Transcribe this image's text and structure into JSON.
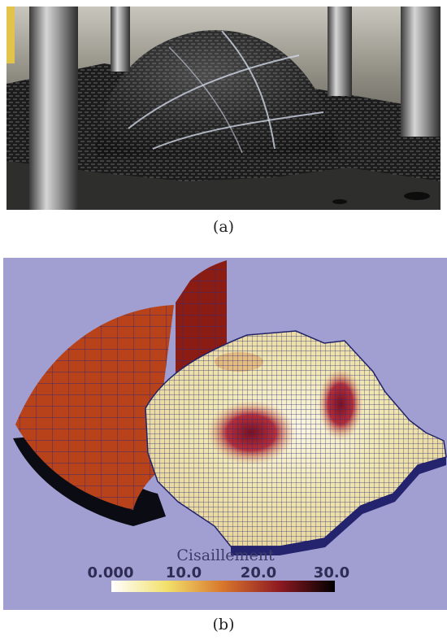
{
  "figure": {
    "panel_a": {
      "caption": "(a)"
    },
    "panel_b": {
      "caption": "(b)",
      "colorbar": {
        "title": "Cisaillement",
        "ticks": [
          "0.000",
          "10.0",
          "20.0",
          "30.0"
        ],
        "min": 0,
        "max": 30,
        "colors": [
          "#ffffff",
          "#f2e06a",
          "#d8762c",
          "#8f1a22",
          "#000000"
        ]
      },
      "colors": {
        "background": "#a19fd1",
        "mesh": "#2a2a7a",
        "blank_holder": "#b8421a",
        "shear_high": "#8f1a22"
      }
    }
  }
}
